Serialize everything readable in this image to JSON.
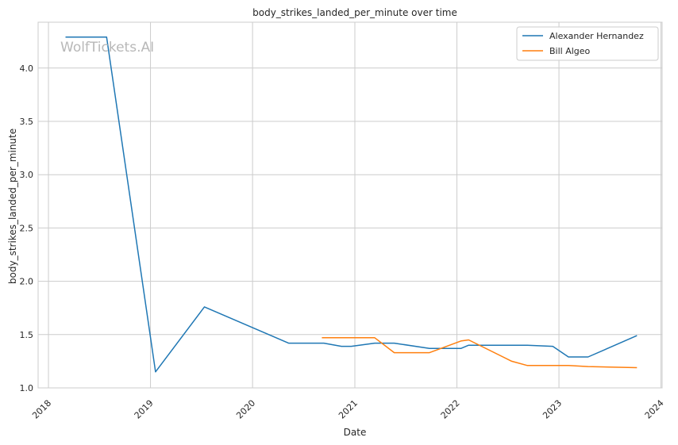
{
  "chart_data": {
    "type": "line",
    "title": "body_strikes_landed_per_minute over time",
    "xlabel": "Date",
    "ylabel": "body_strikes_landed_per_minute",
    "xlim": [
      "2017-11-25",
      "2024-01-05"
    ],
    "ylim": [
      1.0,
      4.43
    ],
    "x_ticks": [
      "2018",
      "2019",
      "2020",
      "2021",
      "2022",
      "2023",
      "2024"
    ],
    "y_ticks": [
      "1.0",
      "1.5",
      "2.0",
      "2.5",
      "3.0",
      "3.5",
      "4.0"
    ],
    "grid": true,
    "legend_position": "top-right",
    "watermark": "WolfTickets.AI",
    "series": [
      {
        "name": "Alexander Hernandez",
        "color": "#1f77b4",
        "points": [
          [
            "2018-03-03",
            4.29
          ],
          [
            "2018-07-28",
            4.29
          ],
          [
            "2019-01-19",
            1.15
          ],
          [
            "2019-07-13",
            1.76
          ],
          [
            "2020-05-09",
            1.42
          ],
          [
            "2020-09-12",
            1.42
          ],
          [
            "2020-11-14",
            1.39
          ],
          [
            "2020-12-19",
            1.39
          ],
          [
            "2021-03-13",
            1.42
          ],
          [
            "2021-05-22",
            1.42
          ],
          [
            "2021-09-25",
            1.37
          ],
          [
            "2022-01-15",
            1.37
          ],
          [
            "2022-02-12",
            1.4
          ],
          [
            "2022-09-10",
            1.4
          ],
          [
            "2022-12-10",
            1.39
          ],
          [
            "2023-02-04",
            1.29
          ],
          [
            "2023-04-15",
            1.29
          ],
          [
            "2023-10-07",
            1.49
          ]
        ]
      },
      {
        "name": "Bill Algeo",
        "color": "#ff7f0e",
        "points": [
          [
            "2020-09-05",
            1.47
          ],
          [
            "2021-03-13",
            1.47
          ],
          [
            "2021-05-22",
            1.33
          ],
          [
            "2021-09-25",
            1.33
          ],
          [
            "2022-01-15",
            1.44
          ],
          [
            "2022-02-12",
            1.45
          ],
          [
            "2022-07-16",
            1.25
          ],
          [
            "2022-09-10",
            1.21
          ],
          [
            "2023-02-04",
            1.21
          ],
          [
            "2023-04-15",
            1.2
          ],
          [
            "2023-10-07",
            1.19
          ]
        ]
      }
    ]
  }
}
